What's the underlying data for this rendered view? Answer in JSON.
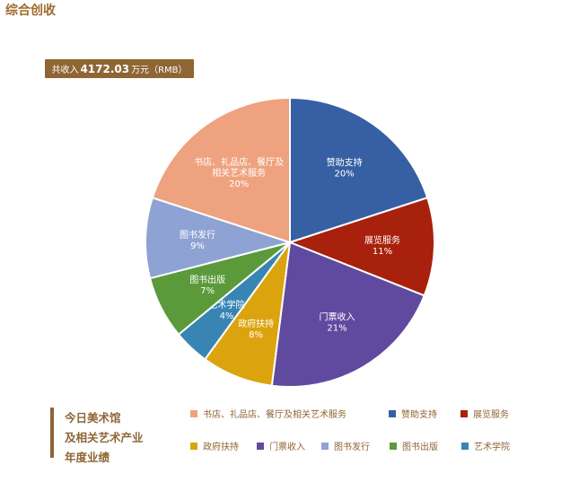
{
  "header": {
    "title": "综合创收"
  },
  "total": {
    "prefix": "共收入",
    "value": "4172.03",
    "suffix": "万元（RMB）"
  },
  "caption": {
    "lines": [
      "今日美术馆",
      "及相关艺术产业",
      "年度业绩"
    ]
  },
  "chart_data": {
    "type": "pie",
    "title": "",
    "slices": [
      {
        "name": "赞助支持",
        "value": 20,
        "label": "20%",
        "color": "#3660a3"
      },
      {
        "name": "展览服务",
        "value": 11,
        "label": "11%",
        "color": "#a8210c"
      },
      {
        "name": "门票收入",
        "value": 21,
        "label": "21%",
        "color": "#5f4a9f"
      },
      {
        "name": "政府扶持",
        "value": 8,
        "label": "8%",
        "color": "#dba40e"
      },
      {
        "name": "艺术学院",
        "value": 4,
        "label": "4%",
        "color": "#3885b3"
      },
      {
        "name": "图书出版",
        "value": 7,
        "label": "7%",
        "color": "#5b9a3a"
      },
      {
        "name": "图书发行",
        "value": 9,
        "label": "9%",
        "color": "#8ea2d3"
      },
      {
        "name": "书店、礼品店、餐厅及相关艺术服务",
        "value": 20,
        "label": "20%",
        "color": "#eea27f",
        "label_lines": [
          "书店、礼品店、餐厅及",
          "相关艺术服务"
        ]
      }
    ],
    "legend": {
      "placement": "bottom",
      "order": [
        "书店、礼品店、餐厅及相关艺术服务",
        "赞助支持",
        "展览服务",
        "政府扶持",
        "门票收入",
        "图书发行",
        "图书出版",
        "艺术学院"
      ]
    }
  }
}
